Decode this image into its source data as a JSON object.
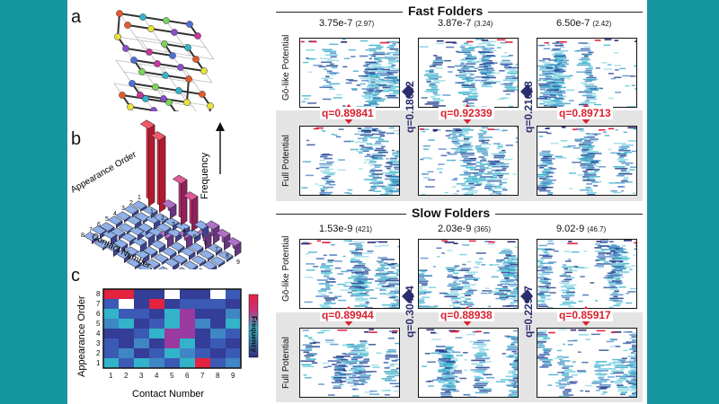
{
  "panel_labels": {
    "a": "a",
    "b": "b",
    "c": "c"
  },
  "panel_b": {
    "axis_appearance": "Appearance Order",
    "axis_contact": "Contact Number",
    "axis_frequency": "Frequency"
  },
  "panel_c": {
    "ylabel": "Appearance Order",
    "xlabel": "Contact Number",
    "colorbar_label": "Frequency",
    "x_ticks": [
      "1",
      "2",
      "3",
      "4",
      "5",
      "6",
      "7",
      "8",
      "9"
    ],
    "y_ticks": [
      "8",
      "7",
      "6",
      "5",
      "4",
      "3",
      "2",
      "1"
    ]
  },
  "fast": {
    "title": "Fast Folders",
    "row_label_top": "Gō-like Potential",
    "row_label_bottom": "Full Potential",
    "rates": [
      {
        "value": "3.75e-7",
        "paren": "(2.97)"
      },
      {
        "value": "3.87e-7",
        "paren": "(3.24)"
      },
      {
        "value": "6.50e-7",
        "paren": "(2.42)"
      }
    ],
    "q_red": [
      "q=0.89841",
      "q=0.92339",
      "q=0.89713"
    ],
    "q_blue": [
      "q=0.18052",
      "q=0.21618"
    ]
  },
  "slow": {
    "title": "Slow Folders",
    "row_label_top": "Gō-like Potential",
    "row_label_bottom": "Full Potential",
    "rates": [
      {
        "value": "1.53e-9",
        "paren": "(421)"
      },
      {
        "value": "2.03e-9",
        "paren": "(365)"
      },
      {
        "value": "9.02-9",
        "paren": "(46.7)"
      }
    ],
    "q_red": [
      "q=0.89944",
      "q=0.88938",
      "q=0.85917"
    ],
    "q_blue": [
      "q=0.30494",
      "q=0.22977"
    ]
  },
  "colors": {
    "side_bar": "#1596a0",
    "q_red": "#d9202e",
    "q_blue": "#2b2d6e",
    "heatmap_low": "#2f2a7a",
    "heatmap_mid": "#33b3c9",
    "heatmap_high": "#e3233f"
  }
}
